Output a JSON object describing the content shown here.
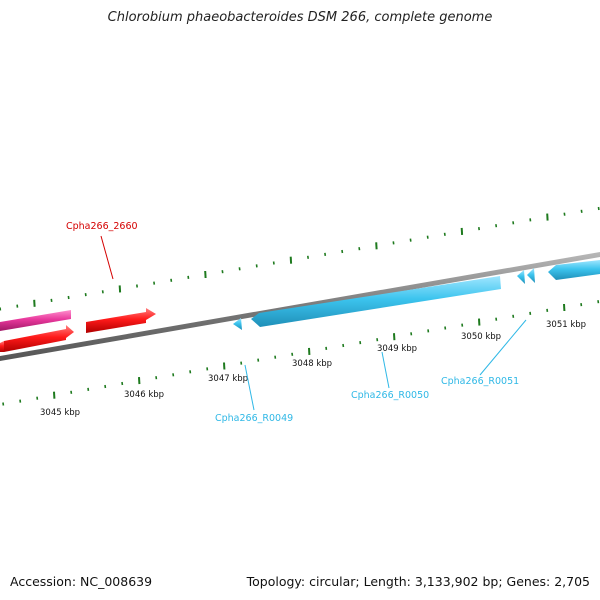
{
  "header": {
    "title": "Chlorobium phaeobacteroides DSM 266, complete genome"
  },
  "footer": {
    "accession": "Accession: NC_008639",
    "summary": "Topology: circular; Length: 3,133,902 bp; Genes: 2,705"
  },
  "colors": {
    "backbone": "#808080",
    "tick": "#1e7a1e",
    "gene_forward_pink": "#e8389c",
    "gene_forward_red": "#ff1a1a",
    "rna_reverse_cyan": "#3cc4ee",
    "label_red": "#d40000",
    "label_cyan": "#2fb8e6"
  },
  "scale": {
    "ticks": [
      {
        "label": "3045 kbp"
      },
      {
        "label": "3046 kbp"
      },
      {
        "label": "3047 kbp"
      },
      {
        "label": "3048 kbp"
      },
      {
        "label": "3049 kbp"
      },
      {
        "label": "3050 kbp"
      },
      {
        "label": "3051 kbp"
      }
    ]
  },
  "features": {
    "gene_2660": {
      "label": "Cpha266_2660"
    },
    "rna_0049": {
      "label": "Cpha266_R0049"
    },
    "rna_0050": {
      "label": "Cpha266_R0050"
    },
    "rna_0051": {
      "label": "Cpha266_R0051"
    }
  }
}
